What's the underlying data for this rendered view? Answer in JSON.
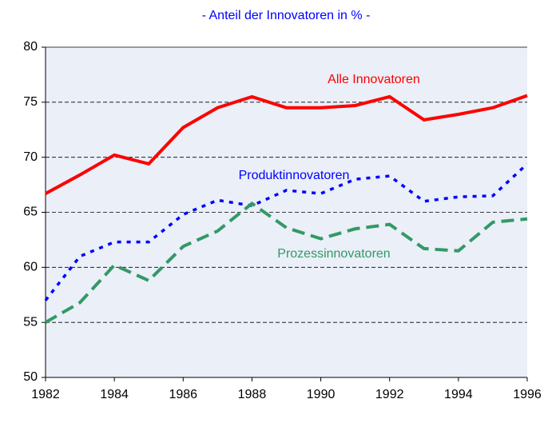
{
  "chart_data": {
    "type": "line",
    "title": "- Anteil der Innovatoren in % -",
    "x": [
      1982,
      1983,
      1984,
      1985,
      1986,
      1987,
      1988,
      1989,
      1990,
      1991,
      1992,
      1993,
      1994,
      1995,
      1996
    ],
    "series": [
      {
        "name": "Alle Innovatoren",
        "color": "#ff0000",
        "values": [
          66.7,
          68.4,
          70.2,
          69.4,
          72.7,
          74.5,
          75.5,
          74.5,
          74.5,
          74.7,
          75.5,
          73.4,
          73.9,
          74.5,
          75.6
        ]
      },
      {
        "name": "Produktinnovatoren",
        "color": "#0000ff",
        "values": [
          57,
          61,
          62.3,
          62.3,
          64.8,
          66.1,
          65.6,
          67.0,
          66.7,
          68.0,
          68.3,
          66.0,
          66.4,
          66.5,
          69.4
        ]
      },
      {
        "name": "Prozessinnovatoren",
        "color": "#339966",
        "values": [
          55.0,
          56.8,
          60.2,
          58.8,
          61.9,
          63.3,
          65.8,
          63.6,
          62.6,
          63.5,
          63.9,
          61.7,
          61.5,
          64.1,
          64.4
        ]
      }
    ],
    "xlim": [
      1982,
      1996
    ],
    "xticks": [
      1982,
      1984,
      1986,
      1988,
      1990,
      1992,
      1994,
      1996
    ],
    "ylim": [
      50,
      80
    ],
    "yticks": [
      50,
      55,
      60,
      65,
      70,
      75,
      80
    ],
    "grid": true
  }
}
